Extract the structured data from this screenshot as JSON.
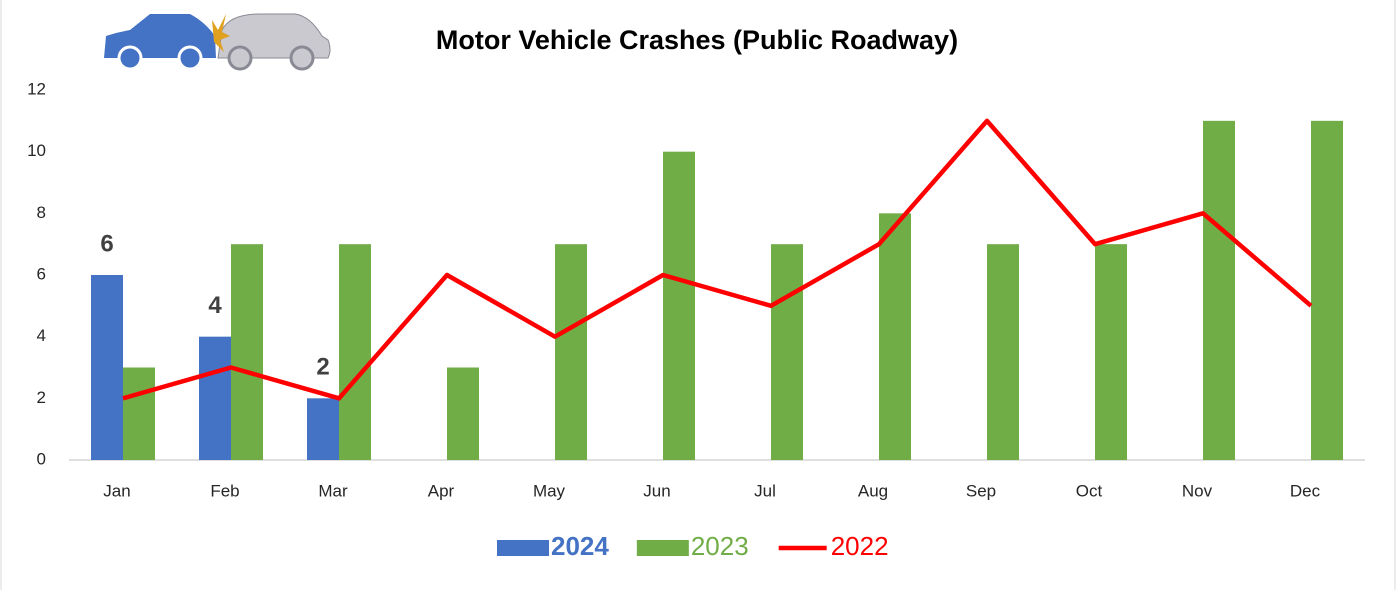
{
  "chart_data": {
    "type": "bar",
    "title": "Motor Vehicle Crashes (Public Roadway)",
    "categories": [
      "Jan",
      "Feb",
      "Mar",
      "Apr",
      "May",
      "Jun",
      "Jul",
      "Aug",
      "Sep",
      "Oct",
      "Nov",
      "Dec"
    ],
    "series": [
      {
        "name": "2024",
        "type": "bar",
        "color": "#4472c4",
        "labels": true,
        "values": [
          6,
          4,
          2,
          null,
          null,
          null,
          null,
          null,
          null,
          null,
          null,
          null
        ]
      },
      {
        "name": "2023",
        "type": "bar",
        "color": "#70ad47",
        "values": [
          3,
          7,
          7,
          3,
          7,
          10,
          7,
          8,
          7,
          7,
          11,
          11
        ]
      },
      {
        "name": "2022",
        "type": "line",
        "color": "#ff0000",
        "values": [
          2,
          3,
          2,
          6,
          4,
          6,
          5,
          7,
          11,
          7,
          8,
          5
        ]
      }
    ],
    "ylim": [
      0,
      12
    ],
    "yticks": [
      0,
      2,
      4,
      6,
      8,
      10,
      12
    ],
    "grid": false,
    "legend": "bottom"
  }
}
